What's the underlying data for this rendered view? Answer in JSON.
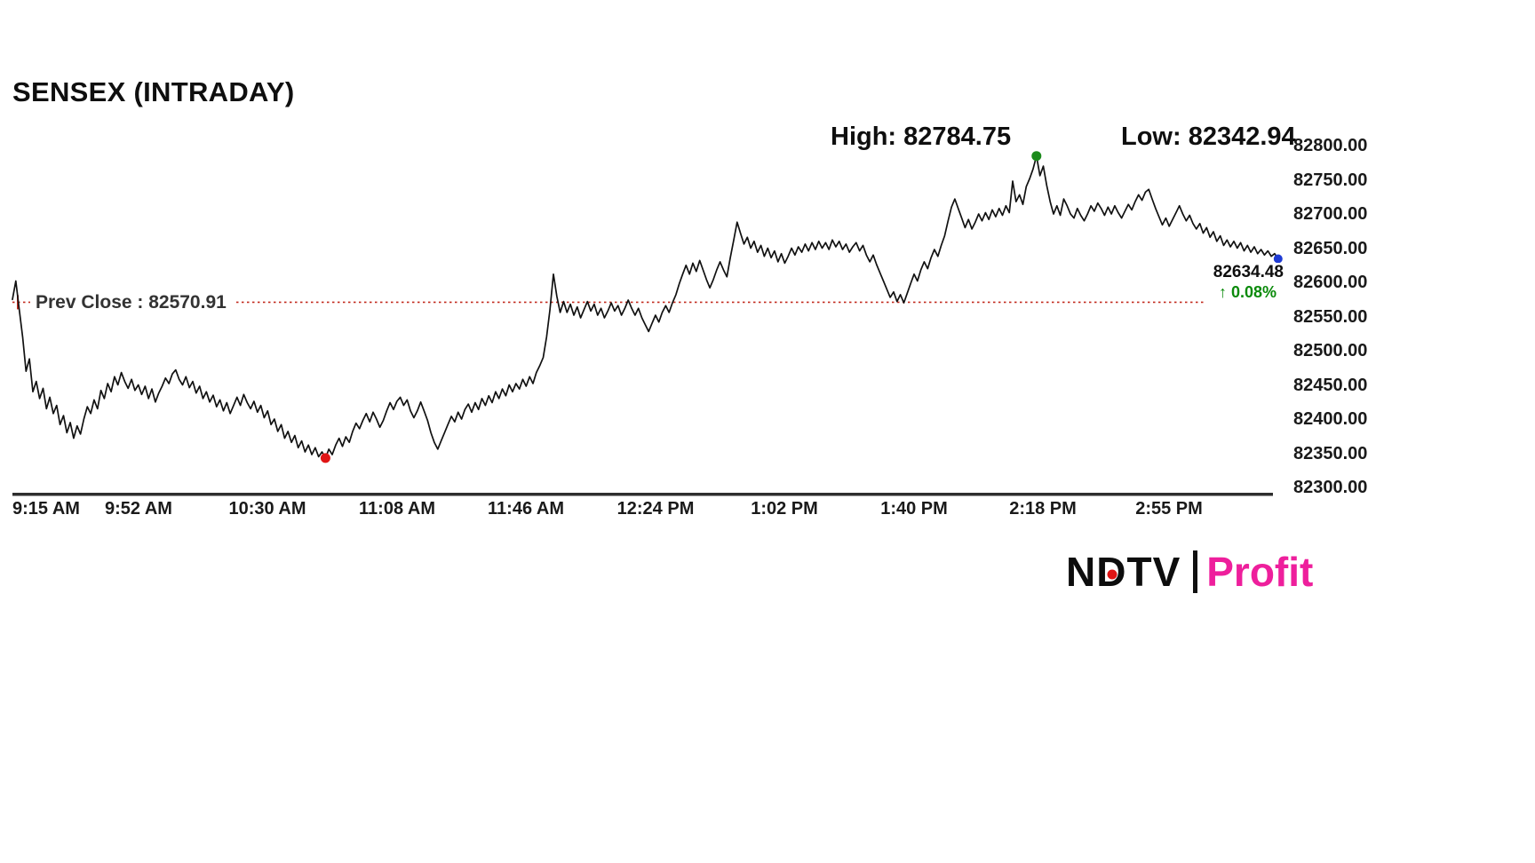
{
  "title": "SENSEX (INTRADAY)",
  "annotations": {
    "high_label": "High: 82784.75",
    "low_label": "Low: 82342.94",
    "prev_close_label": "Prev Close : 82570.91",
    "last_price": "82634.48",
    "change_percent": "↑ 0.08%"
  },
  "logo": {
    "n": "N",
    "d": "D",
    "tv": "TV",
    "product": "Profit"
  },
  "colors": {
    "line": "#111111",
    "prev_close": "#c22a1e",
    "up_green": "#0a8a0a",
    "low_dot": "#e01414",
    "high_dot": "#1b8a1b",
    "last_dot": "#1f3bd4",
    "axis_text": "#1a1a1a",
    "baseline": "#2e2e2e",
    "profit_pink": "#ee1f9c",
    "ndtv_black": "#0d0d0d"
  },
  "chart_data": {
    "type": "line",
    "title": "SENSEX (INTRADAY)",
    "xlabel": "",
    "ylabel": "",
    "grid": false,
    "legend": "none",
    "high": 82784.75,
    "low": 82342.94,
    "prev_close": 82570.91,
    "last": 82634.48,
    "change_pct": 0.08,
    "ylim": [
      82300,
      82800
    ],
    "y_ticks": [
      "82800.00",
      "82750.00",
      "82700.00",
      "82650.00",
      "82600.00",
      "82550.00",
      "82500.00",
      "82450.00",
      "82400.00",
      "82350.00",
      "82300.00"
    ],
    "x_ticks": [
      {
        "label": "9:15 AM",
        "t": 0
      },
      {
        "label": "9:52 AM",
        "t": 37
      },
      {
        "label": "10:30 AM",
        "t": 75
      },
      {
        "label": "11:08 AM",
        "t": 113
      },
      {
        "label": "11:46 AM",
        "t": 151
      },
      {
        "label": "12:24 PM",
        "t": 189
      },
      {
        "label": "1:02 PM",
        "t": 227
      },
      {
        "label": "1:40 PM",
        "t": 265
      },
      {
        "label": "2:18 PM",
        "t": 303
      },
      {
        "label": "2:55 PM",
        "t": 340
      }
    ],
    "x_unit": "minutes since 9:15 AM, one sample per minute",
    "series": [
      {
        "name": "SENSEX",
        "values": [
          82575,
          82602,
          82560,
          82520,
          82470,
          82488,
          82440,
          82455,
          82430,
          82445,
          82415,
          82432,
          82408,
          82420,
          82392,
          82405,
          82380,
          82395,
          82372,
          82390,
          82378,
          82400,
          82418,
          82408,
          82428,
          82415,
          82442,
          82430,
          82452,
          82440,
          82462,
          82450,
          82468,
          82455,
          82445,
          82458,
          82442,
          82450,
          82436,
          82448,
          82430,
          82444,
          82425,
          82438,
          82448,
          82460,
          82452,
          82466,
          82472,
          82458,
          82450,
          82462,
          82446,
          82455,
          82438,
          82448,
          82430,
          82440,
          82425,
          82435,
          82418,
          82428,
          82412,
          82424,
          82408,
          82420,
          82432,
          82420,
          82436,
          82424,
          82415,
          82426,
          82410,
          82420,
          82402,
          82412,
          82392,
          82400,
          82382,
          82392,
          82372,
          82382,
          82366,
          82376,
          82358,
          82368,
          82352,
          82362,
          82348,
          82358,
          82345,
          82352,
          82342.94,
          82356,
          82348,
          82362,
          82372,
          82360,
          82374,
          82366,
          82382,
          82394,
          82386,
          82398,
          82408,
          82396,
          82410,
          82400,
          82388,
          82398,
          82412,
          82424,
          82414,
          82426,
          82432,
          82420,
          82428,
          82412,
          82402,
          82412,
          82425,
          82412,
          82398,
          82380,
          82366,
          82356,
          82368,
          82380,
          82392,
          82404,
          82396,
          82410,
          82400,
          82414,
          82422,
          82410,
          82424,
          82414,
          82430,
          82420,
          82434,
          82424,
          82440,
          82430,
          82444,
          82434,
          82450,
          82440,
          82452,
          82444,
          82458,
          82448,
          82462,
          82452,
          82468,
          82478,
          82490,
          82520,
          82560,
          82612,
          82580,
          82556,
          82572,
          82556,
          82568,
          82552,
          82564,
          82548,
          82560,
          82572,
          82558,
          82568,
          82552,
          82562,
          82548,
          82558,
          82570,
          82558,
          82566,
          82552,
          82562,
          82574,
          82562,
          82552,
          82562,
          82548,
          82538,
          82528,
          82540,
          82552,
          82542,
          82556,
          82566,
          82556,
          82570,
          82582,
          82598,
          82612,
          82625,
          82612,
          82628,
          82616,
          82632,
          82618,
          82604,
          82592,
          82604,
          82618,
          82630,
          82618,
          82608,
          82636,
          82662,
          82688,
          82672,
          82656,
          82666,
          82650,
          82660,
          82644,
          82654,
          82638,
          82650,
          82636,
          82646,
          82630,
          82642,
          82628,
          82638,
          82650,
          82640,
          82652,
          82644,
          82656,
          82646,
          82658,
          82648,
          82660,
          82650,
          82658,
          82648,
          82662,
          82652,
          82660,
          82648,
          82656,
          82644,
          82652,
          82658,
          82646,
          82654,
          82640,
          82630,
          82640,
          82626,
          82614,
          82602,
          82590,
          82578,
          82586,
          82572,
          82582,
          82570,
          82584,
          82598,
          82612,
          82602,
          82618,
          82630,
          82620,
          82636,
          82648,
          82638,
          82654,
          82668,
          82690,
          82710,
          82722,
          82708,
          82694,
          82680,
          82692,
          82678,
          82688,
          82700,
          82690,
          82702,
          82692,
          82706,
          82696,
          82708,
          82698,
          82712,
          82702,
          82748,
          82718,
          82728,
          82714,
          82740,
          82752,
          82766,
          82784.75,
          82756,
          82770,
          82742,
          82718,
          82700,
          82712,
          82698,
          82722,
          82712,
          82700,
          82694,
          82708,
          82698,
          82690,
          82700,
          82712,
          82704,
          82716,
          82708,
          82698,
          82710,
          82700,
          82712,
          82702,
          82694,
          82704,
          82714,
          82706,
          82718,
          82728,
          82720,
          82732,
          82736,
          82722,
          82708,
          82696,
          82684,
          82694,
          82682,
          82692,
          82702,
          82712,
          82700,
          82690,
          82698,
          82686,
          82678,
          82686,
          82672,
          82680,
          82666,
          82674,
          82660,
          82668,
          82654,
          82662,
          82652,
          82660,
          82650,
          82658,
          82646,
          82654,
          82644,
          82652,
          82642,
          82648,
          82640,
          82646,
          82638,
          82642,
          82634.48
        ]
      }
    ]
  }
}
